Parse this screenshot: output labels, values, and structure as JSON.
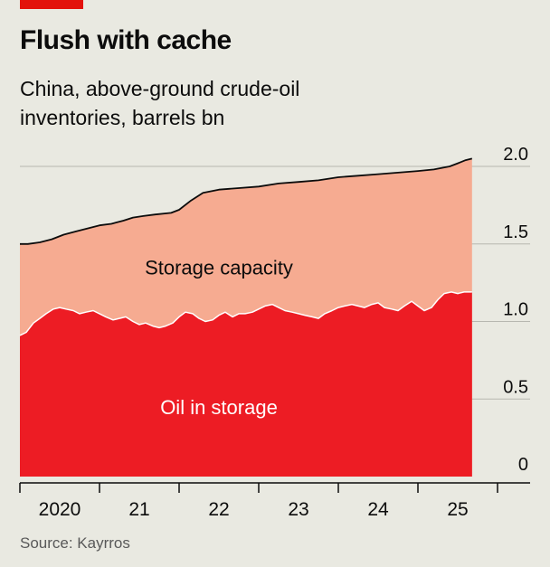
{
  "header": {
    "title": "Flush with cache",
    "subtitle": "China, above-ground crude-oil inventories, barrels bn"
  },
  "footer": {
    "source": "Source: Kayrros"
  },
  "colors": {
    "background": "#e9e9e1",
    "accent": "#e3120b",
    "oil": "#ed1c24",
    "capacity": "#f6ab91",
    "capacity_line": "#0c0c0c",
    "gridline": "#b7b7b0",
    "text": "#0c0c0c"
  },
  "chart_data": {
    "type": "area",
    "title": "Flush with cache",
    "subtitle": "China, above-ground crude-oil inventories, barrels bn",
    "xlabel": "",
    "ylabel": "",
    "ylim": [
      0,
      2.0
    ],
    "xlim": [
      2020.0,
      2025.75
    ],
    "yticks": [
      0,
      0.5,
      1.0,
      1.5,
      2.0
    ],
    "ytick_labels": [
      "0",
      "0.5",
      "1.0",
      "1.5",
      "2.0"
    ],
    "xticks": [
      2020,
      2021,
      2022,
      2023,
      2024,
      2025,
      2026
    ],
    "xtick_labels": [
      "2020",
      "21",
      "22",
      "23",
      "24",
      "25"
    ],
    "grid": "horizontal",
    "y_axis_side": "right",
    "area_labels": [
      {
        "text": "Storage capacity",
        "x": 2022.5,
        "y": 1.35
      },
      {
        "text": "Oil in storage",
        "x": 2022.5,
        "y": 0.45
      }
    ],
    "series": [
      {
        "name": "Storage capacity",
        "color": "#f6ab91",
        "x": [
          2020.0,
          2020.1,
          2020.25,
          2020.4,
          2020.55,
          2020.7,
          2020.85,
          2021.0,
          2021.15,
          2021.3,
          2021.42,
          2021.55,
          2021.7,
          2021.9,
          2022.0,
          2022.15,
          2022.3,
          2022.5,
          2022.75,
          2023.0,
          2023.25,
          2023.5,
          2023.75,
          2024.0,
          2024.25,
          2024.5,
          2024.75,
          2025.0,
          2025.2,
          2025.4,
          2025.5,
          2025.6,
          2025.68
        ],
        "y": [
          1.5,
          1.5,
          1.51,
          1.53,
          1.56,
          1.58,
          1.6,
          1.62,
          1.63,
          1.65,
          1.67,
          1.68,
          1.69,
          1.7,
          1.72,
          1.78,
          1.83,
          1.85,
          1.86,
          1.87,
          1.89,
          1.9,
          1.91,
          1.93,
          1.94,
          1.95,
          1.96,
          1.97,
          1.98,
          2.0,
          2.02,
          2.04,
          2.05
        ]
      },
      {
        "name": "Oil in storage",
        "color": "#ed1c24",
        "x": [
          2020.0,
          2020.08,
          2020.17,
          2020.25,
          2020.33,
          2020.42,
          2020.5,
          2020.58,
          2020.67,
          2020.75,
          2020.83,
          2020.92,
          2021.0,
          2021.08,
          2021.17,
          2021.25,
          2021.33,
          2021.42,
          2021.5,
          2021.58,
          2021.67,
          2021.75,
          2021.83,
          2021.92,
          2022.0,
          2022.08,
          2022.17,
          2022.25,
          2022.33,
          2022.42,
          2022.5,
          2022.58,
          2022.67,
          2022.75,
          2022.83,
          2022.92,
          2023.0,
          2023.08,
          2023.17,
          2023.25,
          2023.33,
          2023.42,
          2023.5,
          2023.58,
          2023.67,
          2023.75,
          2023.83,
          2023.92,
          2024.0,
          2024.08,
          2024.17,
          2024.25,
          2024.33,
          2024.42,
          2024.5,
          2024.58,
          2024.67,
          2024.75,
          2024.83,
          2024.92,
          2025.0,
          2025.08,
          2025.17,
          2025.25,
          2025.33,
          2025.42,
          2025.5,
          2025.58,
          2025.68
        ],
        "y": [
          0.91,
          0.93,
          0.99,
          1.02,
          1.05,
          1.08,
          1.09,
          1.08,
          1.07,
          1.05,
          1.06,
          1.07,
          1.05,
          1.03,
          1.01,
          1.02,
          1.03,
          1.0,
          0.98,
          0.99,
          0.97,
          0.96,
          0.97,
          0.99,
          1.03,
          1.06,
          1.05,
          1.02,
          1.0,
          1.01,
          1.04,
          1.06,
          1.03,
          1.05,
          1.05,
          1.06,
          1.08,
          1.1,
          1.11,
          1.09,
          1.07,
          1.06,
          1.05,
          1.04,
          1.03,
          1.02,
          1.05,
          1.07,
          1.09,
          1.1,
          1.11,
          1.1,
          1.09,
          1.11,
          1.12,
          1.09,
          1.08,
          1.07,
          1.1,
          1.13,
          1.1,
          1.07,
          1.09,
          1.14,
          1.18,
          1.19,
          1.18,
          1.19,
          1.19
        ]
      }
    ]
  }
}
